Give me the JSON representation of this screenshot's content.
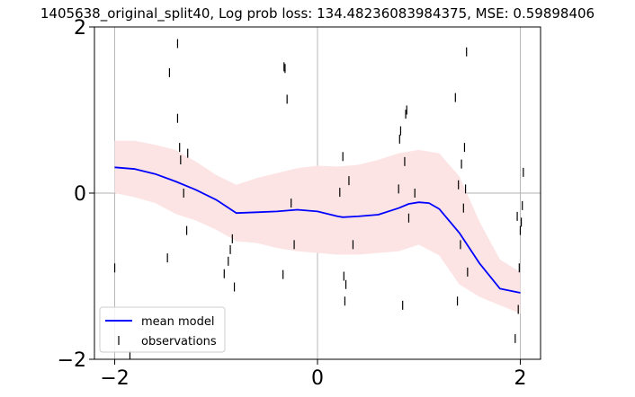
{
  "chart_data": {
    "type": "line",
    "title": "1405638_original_split40, Log prob loss: 134.48236083984375, MSE: 0.59898406",
    "xlabel": "",
    "ylabel": "",
    "xlim": [
      -2.2,
      2.2
    ],
    "ylim": [
      -2,
      2
    ],
    "xticks": [
      -2,
      0,
      2
    ],
    "yticks": [
      -2,
      0,
      2
    ],
    "xtick_labels": [
      "−2",
      "0",
      "2"
    ],
    "ytick_labels": [
      "−2",
      "0",
      "2"
    ],
    "grid": true,
    "legend_position": "lower-left",
    "colors": {
      "mean": "#0000ff",
      "band": "#fde4e4",
      "observations": "#000000",
      "grid": "#b0b0b0"
    },
    "series": [
      {
        "name": "mean model",
        "kind": "line",
        "x": [
          -2.0,
          -1.8,
          -1.6,
          -1.4,
          -1.2,
          -1.0,
          -0.8,
          -0.6,
          -0.4,
          -0.2,
          0.0,
          0.2,
          0.25,
          0.4,
          0.6,
          0.8,
          0.9,
          1.0,
          1.1,
          1.2,
          1.4,
          1.6,
          1.8,
          2.0
        ],
        "y": [
          0.31,
          0.29,
          0.23,
          0.14,
          0.04,
          -0.08,
          -0.24,
          -0.23,
          -0.22,
          -0.2,
          -0.22,
          -0.28,
          -0.29,
          -0.28,
          -0.26,
          -0.18,
          -0.13,
          -0.11,
          -0.12,
          -0.19,
          -0.48,
          -0.85,
          -1.15,
          -1.2
        ]
      },
      {
        "name": "",
        "kind": "band",
        "x": [
          -2.0,
          -1.8,
          -1.6,
          -1.4,
          -1.2,
          -1.0,
          -0.8,
          -0.6,
          -0.4,
          -0.2,
          0.0,
          0.2,
          0.4,
          0.6,
          0.8,
          1.0,
          1.2,
          1.4,
          1.6,
          1.8,
          2.0
        ],
        "upper": [
          0.63,
          0.63,
          0.58,
          0.52,
          0.38,
          0.22,
          0.1,
          0.18,
          0.24,
          0.3,
          0.33,
          0.32,
          0.34,
          0.4,
          0.48,
          0.52,
          0.48,
          0.2,
          -0.35,
          -0.8,
          -0.95
        ],
        "lower": [
          -0.0,
          -0.05,
          -0.12,
          -0.25,
          -0.33,
          -0.44,
          -0.58,
          -0.6,
          -0.66,
          -0.7,
          -0.72,
          -0.74,
          -0.74,
          -0.72,
          -0.7,
          -0.62,
          -0.75,
          -1.1,
          -1.25,
          -1.35,
          -1.45
        ]
      },
      {
        "name": "observations",
        "kind": "scatter",
        "marker": "vertical-tick",
        "x": [
          -2.0,
          -1.85,
          -1.46,
          -1.48,
          -1.38,
          -1.38,
          -1.36,
          -1.35,
          -1.32,
          -1.29,
          -1.28,
          -0.92,
          -0.88,
          -0.86,
          -0.84,
          -0.82,
          -0.34,
          -0.33,
          -0.32,
          -0.3,
          -0.26,
          -0.23,
          0.22,
          0.25,
          0.26,
          0.27,
          0.28,
          0.31,
          0.35,
          0.8,
          0.81,
          0.82,
          0.84,
          0.86,
          0.87,
          0.88,
          0.9,
          0.96,
          1.36,
          1.38,
          1.39,
          1.41,
          1.42,
          1.44,
          1.45,
          1.46,
          1.47,
          1.48,
          1.95,
          1.97,
          1.98,
          1.99,
          2.0,
          2.01,
          2.02,
          2.03
        ],
        "y": [
          -0.9,
          -1.95,
          1.45,
          -0.78,
          1.8,
          0.9,
          0.55,
          0.4,
          0.0,
          -0.45,
          0.48,
          -0.97,
          -0.82,
          -0.68,
          -0.55,
          -1.13,
          -0.98,
          1.52,
          1.5,
          1.13,
          -0.12,
          -0.62,
          0.01,
          0.44,
          -1.0,
          -1.3,
          -1.1,
          0.15,
          -0.62,
          0.05,
          0.65,
          0.75,
          -1.35,
          0.38,
          0.95,
          1.0,
          -0.3,
          0.0,
          1.15,
          -1.3,
          0.1,
          -0.62,
          0.35,
          -0.18,
          0.55,
          0.05,
          1.7,
          -0.95,
          -1.75,
          -0.28,
          -1.4,
          -0.9,
          -0.45,
          -0.35,
          -0.15,
          0.25
        ]
      }
    ]
  }
}
